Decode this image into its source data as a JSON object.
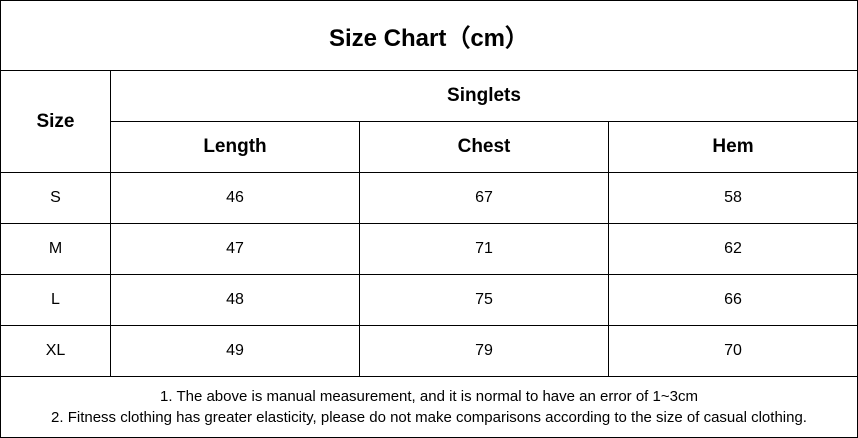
{
  "title": "Size Chart（cm）",
  "size_header": "Size",
  "group_header": "Singlets",
  "columns": [
    "Length",
    "Chest",
    "Hem"
  ],
  "rows": [
    {
      "size": "S",
      "values": [
        "46",
        "67",
        "58"
      ]
    },
    {
      "size": "M",
      "values": [
        "47",
        "71",
        "62"
      ]
    },
    {
      "size": "L",
      "values": [
        "48",
        "75",
        "66"
      ]
    },
    {
      "size": "XL",
      "values": [
        "49",
        "79",
        "70"
      ]
    }
  ],
  "notes": [
    "1. The above is manual measurement, and it is normal to have an error of 1~3cm",
    "2. Fitness clothing has greater elasticity, please do not make comparisons according to the size of casual clothing."
  ]
}
